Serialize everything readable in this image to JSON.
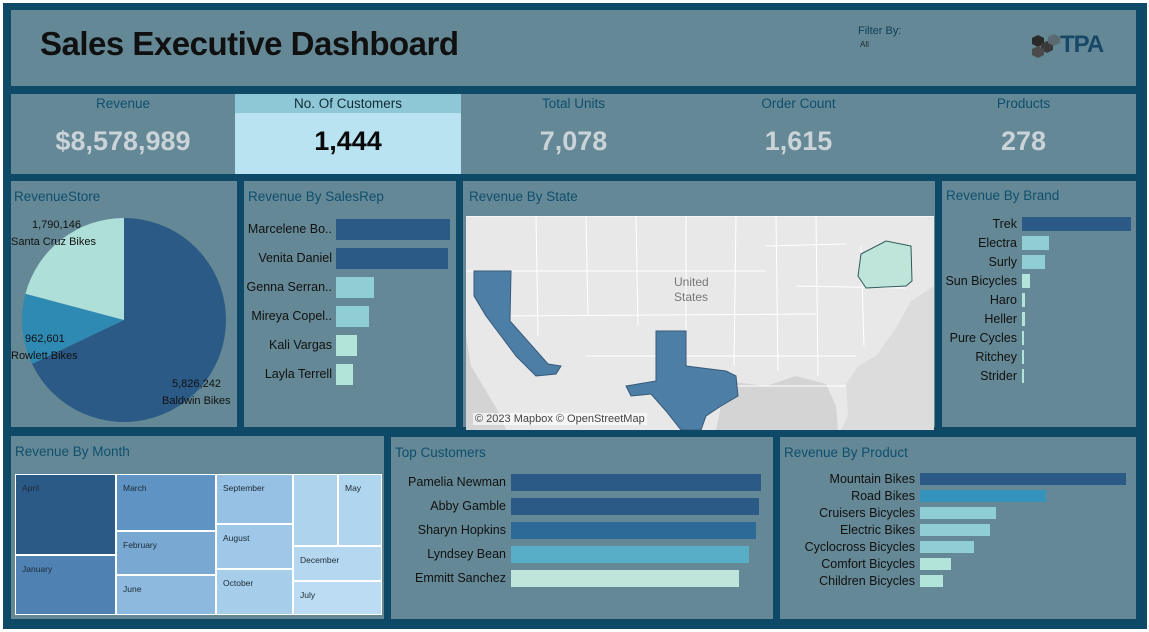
{
  "header": {
    "title": "Sales Executive Dashboard",
    "filter_label": "Filter By:",
    "filter_value": "All",
    "logo_text": "TPA"
  },
  "kpis": [
    {
      "label": "Revenue",
      "value": "$8,578,989",
      "selected": false
    },
    {
      "label": "No. Of Customers",
      "value": "1,444",
      "selected": true
    },
    {
      "label": "Total Units",
      "value": "7,078",
      "selected": false
    },
    {
      "label": "Order Count",
      "value": "1,615",
      "selected": false
    },
    {
      "label": "Products",
      "value": "278",
      "selected": false
    }
  ],
  "revenue_store": {
    "title": "RevenueStore",
    "slices": [
      {
        "name": "Baldwin Bikes",
        "value_label": "5,826,242",
        "value": 5826242,
        "color": "#2b5a86"
      },
      {
        "name": "Rowlett Bikes",
        "value_label": "962,601",
        "value": 962601,
        "color": "#2f8ab3"
      },
      {
        "name": "Santa Cruz Bikes",
        "value_label": "1,790,146",
        "value": 1790146,
        "color": "#aedfd8"
      }
    ]
  },
  "sales_rep": {
    "title": "Revenue By SalesRep",
    "items": [
      {
        "name": "Marcelene Bo..",
        "value": 100,
        "color": "#2b5a86"
      },
      {
        "name": "Venita Daniel",
        "value": 98,
        "color": "#2b5a86"
      },
      {
        "name": "Genna Serran..",
        "value": 33,
        "color": "#8fcfd4"
      },
      {
        "name": "Mireya Copel..",
        "value": 29,
        "color": "#8fcfd4"
      },
      {
        "name": "Kali Vargas",
        "value": 18,
        "color": "#b2e4da"
      },
      {
        "name": "Layla Terrell",
        "value": 15,
        "color": "#b2e4da"
      }
    ]
  },
  "state_map": {
    "title": "Revenue By State",
    "country_label_1": "United",
    "country_label_2": "States",
    "attribution": "© 2023 Mapbox © OpenStreetMap",
    "highlight_colors": {
      "california": "#4d7fa6",
      "texas": "#4d7fa6",
      "new_york": "#bfe5da"
    }
  },
  "brand": {
    "title": "Revenue By Brand",
    "items": [
      {
        "name": "Trek",
        "value": 100,
        "color": "#2b5a86"
      },
      {
        "name": "Electra",
        "value": 25,
        "color": "#8fcfd4"
      },
      {
        "name": "Surly",
        "value": 21,
        "color": "#8fcfd4"
      },
      {
        "name": "Sun Bicycles",
        "value": 7,
        "color": "#b2e4da"
      },
      {
        "name": "Haro",
        "value": 3,
        "color": "#b2e4da"
      },
      {
        "name": "Heller",
        "value": 3,
        "color": "#b2e4da"
      },
      {
        "name": "Pure Cycles",
        "value": 2,
        "color": "#b2e4da"
      },
      {
        "name": "Ritchey",
        "value": 1.5,
        "color": "#b2e4da"
      },
      {
        "name": "Strider",
        "value": 1,
        "color": "#b2e4da"
      }
    ]
  },
  "months": {
    "title": "Revenue By Month",
    "cells": [
      "April",
      "January",
      "March",
      "February",
      "June",
      "September",
      "August",
      "October",
      "May",
      "December",
      "July"
    ]
  },
  "top_customers": {
    "title": "Top Customers",
    "items": [
      {
        "name": "Pamelia Newman",
        "value": 100,
        "color": "#2b5a86"
      },
      {
        "name": "Abby Gamble",
        "value": 99,
        "color": "#2b5a86"
      },
      {
        "name": "Sharyn Hopkins",
        "value": 98,
        "color": "#2e6a98"
      },
      {
        "name": "Lyndsey Bean",
        "value": 95,
        "color": "#58aec6"
      },
      {
        "name": "Emmitt Sanchez",
        "value": 91,
        "color": "#bfe5da"
      }
    ]
  },
  "product": {
    "title": "Revenue By Product",
    "items": [
      {
        "name": "Mountain Bikes",
        "value": 100,
        "color": "#2b5a86"
      },
      {
        "name": "Road Bikes",
        "value": 61,
        "color": "#3593bb"
      },
      {
        "name": "Cruisers Bicycles",
        "value": 37,
        "color": "#8fcfd4"
      },
      {
        "name": "Electric Bikes",
        "value": 34,
        "color": "#8fcfd4"
      },
      {
        "name": "Cyclocross Bicycles",
        "value": 26,
        "color": "#8fcfd4"
      },
      {
        "name": "Comfort Bicycles",
        "value": 15,
        "color": "#b2e4da"
      },
      {
        "name": "Children Bicycles",
        "value": 11,
        "color": "#b2e4da"
      }
    ]
  }
}
